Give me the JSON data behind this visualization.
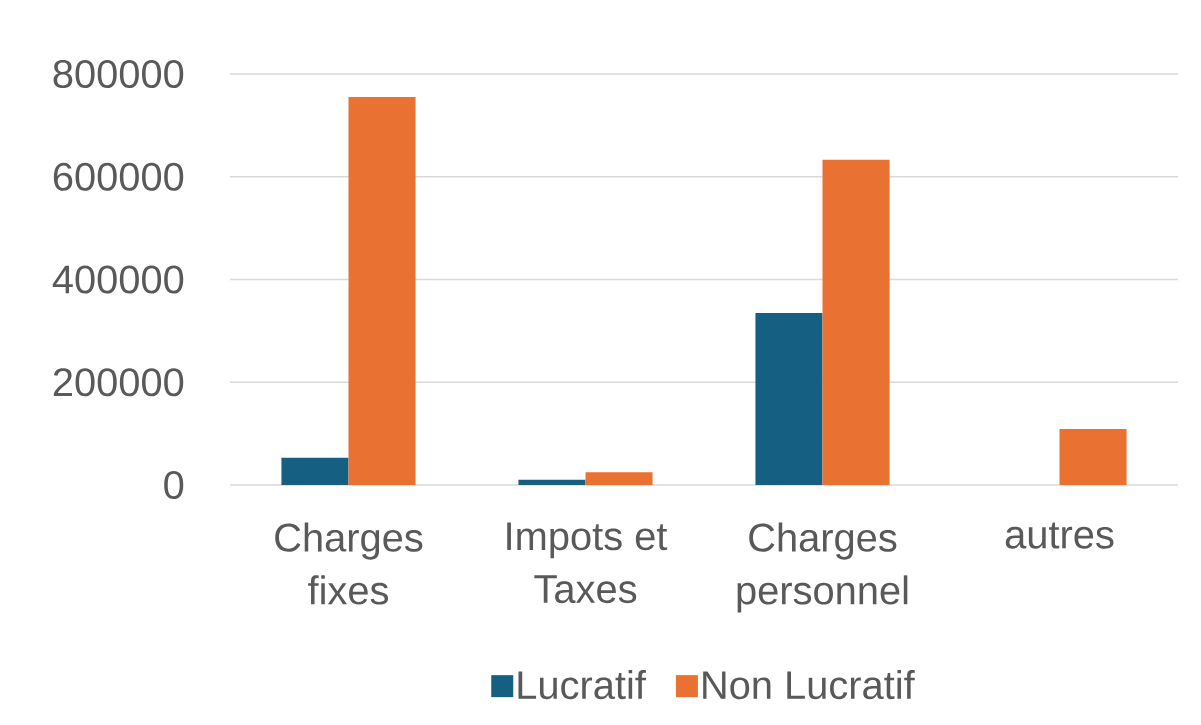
{
  "chart_data": {
    "type": "bar",
    "categories": [
      "Charges fixes",
      "Impots et Taxes",
      "Charges personnel",
      "autres"
    ],
    "series": [
      {
        "name": "Lucratif",
        "color": "#156082",
        "values": [
          53000,
          10000,
          335000,
          null
        ]
      },
      {
        "name": "Non Lucratif",
        "color": "#e97132",
        "values": [
          755000,
          25000,
          633000,
          109000
        ]
      }
    ],
    "ylim": [
      0,
      800000
    ],
    "yticks": [
      0,
      200000,
      400000,
      600000,
      800000
    ],
    "grid": "y",
    "legend": "bottom"
  }
}
